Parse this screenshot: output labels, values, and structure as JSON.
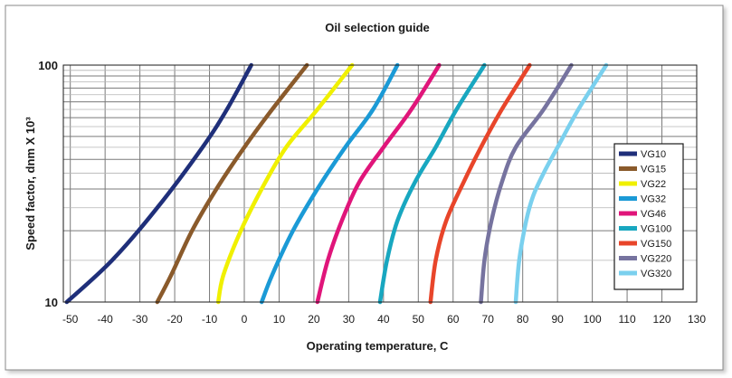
{
  "chart_data": {
    "type": "line",
    "title": "Oil selection guide",
    "xlabel": "Operating temperature, C",
    "ylabel": "Speed factor, dnm X 10³",
    "xlim": [
      -52,
      130
    ],
    "ylim": [
      10,
      100
    ],
    "y_scale": "log",
    "x_ticks": [
      -50,
      -40,
      -30,
      -20,
      -10,
      0,
      10,
      20,
      30,
      40,
      50,
      60,
      70,
      80,
      90,
      100,
      110,
      120,
      130
    ],
    "y_ticks": [
      10,
      100
    ],
    "grid": true,
    "legend_position": "right",
    "series": [
      {
        "name": "VG10",
        "color": "#1f2f7a",
        "points": [
          [
            -51,
            10
          ],
          [
            -38,
            15
          ],
          [
            -25,
            25
          ],
          [
            -12,
            45
          ],
          [
            -5,
            65
          ],
          [
            2,
            100
          ]
        ]
      },
      {
        "name": "VG15",
        "color": "#8a5a2b",
        "points": [
          [
            -25,
            10
          ],
          [
            -21,
            13
          ],
          [
            -15,
            20
          ],
          [
            -8,
            30
          ],
          [
            0,
            45
          ],
          [
            8,
            65
          ],
          [
            18,
            100
          ]
        ]
      },
      {
        "name": "VG22",
        "color": "#f0f000",
        "points": [
          [
            -7.5,
            10
          ],
          [
            -6,
            13
          ],
          [
            -1,
            20
          ],
          [
            5,
            30
          ],
          [
            12,
            45
          ],
          [
            21,
            65
          ],
          [
            31,
            100
          ]
        ]
      },
      {
        "name": "VG32",
        "color": "#1b9ad6",
        "points": [
          [
            5,
            10
          ],
          [
            8,
            13
          ],
          [
            14,
            20
          ],
          [
            21,
            30
          ],
          [
            29,
            45
          ],
          [
            37,
            65
          ],
          [
            44,
            100
          ]
        ]
      },
      {
        "name": "VG46",
        "color": "#e0157a",
        "points": [
          [
            21,
            10
          ],
          [
            24,
            15
          ],
          [
            28,
            22
          ],
          [
            33,
            32
          ],
          [
            40,
            45
          ],
          [
            48,
            65
          ],
          [
            56,
            100
          ]
        ]
      },
      {
        "name": "VG100",
        "color": "#18a7c0",
        "points": [
          [
            39,
            10
          ],
          [
            41,
            15
          ],
          [
            44,
            22
          ],
          [
            49,
            32
          ],
          [
            55,
            45
          ],
          [
            61,
            65
          ],
          [
            69,
            100
          ]
        ]
      },
      {
        "name": "VG150",
        "color": "#e8452a",
        "points": [
          [
            53.5,
            10
          ],
          [
            55,
            15
          ],
          [
            58,
            22
          ],
          [
            63,
            32
          ],
          [
            68,
            45
          ],
          [
            74,
            65
          ],
          [
            82,
            100
          ]
        ]
      },
      {
        "name": "VG220",
        "color": "#76739f",
        "points": [
          [
            68,
            10
          ],
          [
            69,
            15
          ],
          [
            71,
            22
          ],
          [
            74,
            32
          ],
          [
            78,
            45
          ],
          [
            86,
            65
          ],
          [
            94,
            100
          ]
        ]
      },
      {
        "name": "VG320",
        "color": "#7ad0ee",
        "points": [
          [
            78,
            10
          ],
          [
            79,
            15
          ],
          [
            81,
            22
          ],
          [
            83,
            28
          ],
          [
            86,
            35
          ],
          [
            90,
            45
          ],
          [
            96,
            65
          ],
          [
            104,
            100
          ]
        ]
      }
    ]
  }
}
